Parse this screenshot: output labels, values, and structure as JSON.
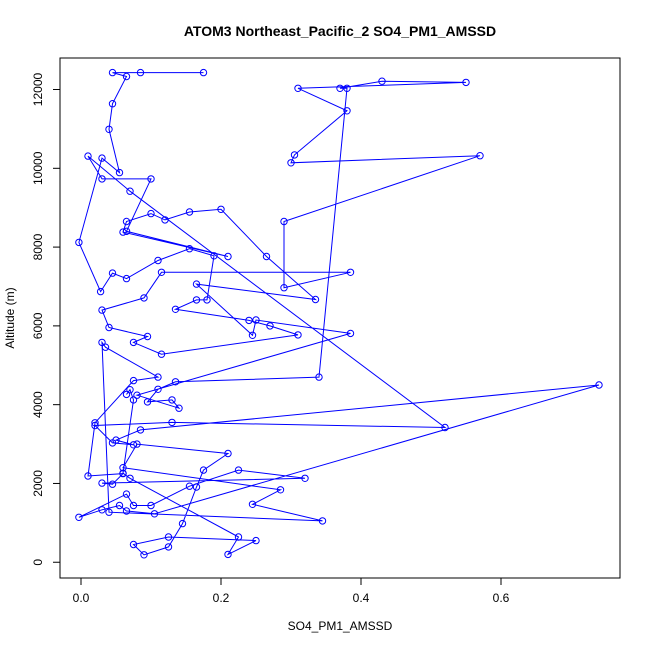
{
  "chart_data": {
    "type": "line",
    "title": "ATOM3 Northeast_Pacific_2 SO4_PM1_AMSSD",
    "xlabel": "SO4_PM1_AMSSD",
    "ylabel": "Altitude (m)",
    "xlim": [
      -0.03,
      0.77
    ],
    "ylim": [
      -400,
      12800
    ],
    "x_ticks": [
      0.0,
      0.2,
      0.4,
      0.6
    ],
    "x_tick_labels": [
      "0.0",
      "0.2",
      "0.4",
      "0.6"
    ],
    "y_ticks": [
      0,
      2000,
      4000,
      6000,
      8000,
      10000,
      12000
    ],
    "y_tick_labels": [
      "0",
      "2000",
      "4000",
      "6000",
      "8000",
      "10000",
      "12000"
    ],
    "color": "#0000ff",
    "marker": "open-circle",
    "series": [
      {
        "x": [
          0.175,
          0.085,
          0.045,
          0.065,
          0.045,
          0.04,
          0.055,
          0.03,
          -0.003,
          0.028,
          0.045,
          0.065,
          0.11,
          0.155,
          0.19,
          0.18,
          0.165,
          0.135,
          0.24,
          0.27,
          0.31,
          0.115,
          0.075,
          0.095,
          0.04,
          0.03,
          0.09,
          0.115,
          0.385,
          0.29,
          0.29,
          0.57,
          0.3,
          0.305,
          0.38,
          0.31,
          0.55,
          0.43,
          0.37,
          0.38,
          0.34,
          0.135,
          0.11,
          0.095,
          0.13,
          0.14,
          0.08,
          0.385,
          0.25,
          0.245,
          0.165,
          0.335,
          0.265,
          0.2,
          0.155,
          0.12,
          0.1,
          0.065,
          0.06,
          0.21,
          0.065,
          0.1,
          0.03,
          0.01,
          0.07,
          0.52,
          0.13,
          0.02,
          0.045,
          0.075,
          0.05,
          0.085,
          0.74,
          0.105,
          0.065,
          0.055,
          0.03,
          -0.003,
          0.065,
          0.075,
          0.1,
          0.155,
          0.225,
          0.32,
          0.03,
          0.045,
          0.06,
          0.01,
          0.02,
          0.075,
          0.11,
          0.035,
          0.03,
          0.04,
          0.345,
          0.245,
          0.285,
          0.06,
          0.08,
          0.21,
          0.175,
          0.165,
          0.145,
          0.125,
          0.09,
          0.075,
          0.125,
          0.25,
          0.21,
          0.225,
          0.07,
          0.06,
          0.075,
          0.07,
          0.065
        ],
        "y": [
          12430,
          12430,
          12430,
          12330,
          11640,
          10990,
          9890,
          10260,
          8120,
          6870,
          7340,
          7200,
          7660,
          7960,
          7780,
          6660,
          6660,
          6420,
          6140,
          6000,
          5770,
          5280,
          5580,
          5730,
          5960,
          6400,
          6710,
          7360,
          7360,
          6970,
          8650,
          10320,
          10140,
          10340,
          11460,
          12030,
          12180,
          12210,
          12030,
          12030,
          4700,
          4580,
          4390,
          4070,
          4120,
          3910,
          4240,
          5810,
          6150,
          5760,
          7060,
          6670,
          7760,
          8960,
          8890,
          8690,
          8850,
          8650,
          8380,
          7760,
          8400,
          9730,
          9730,
          10310,
          9420,
          3420,
          3550,
          3470,
          3030,
          2980,
          3100,
          3360,
          4500,
          1230,
          1300,
          1440,
          1330,
          1140,
          1730,
          1440,
          1440,
          1930,
          2340,
          2130,
          2010,
          1980,
          2250,
          2190,
          3540,
          4610,
          4700,
          5460,
          5580,
          1270,
          1050,
          1470,
          1840,
          2400,
          3000,
          2760,
          2340,
          1910,
          980,
          390,
          190,
          450,
          640,
          550,
          200,
          640,
          2130,
          2260,
          4120,
          4380,
          4260
        ],
        "segment_breaks": []
      }
    ]
  }
}
